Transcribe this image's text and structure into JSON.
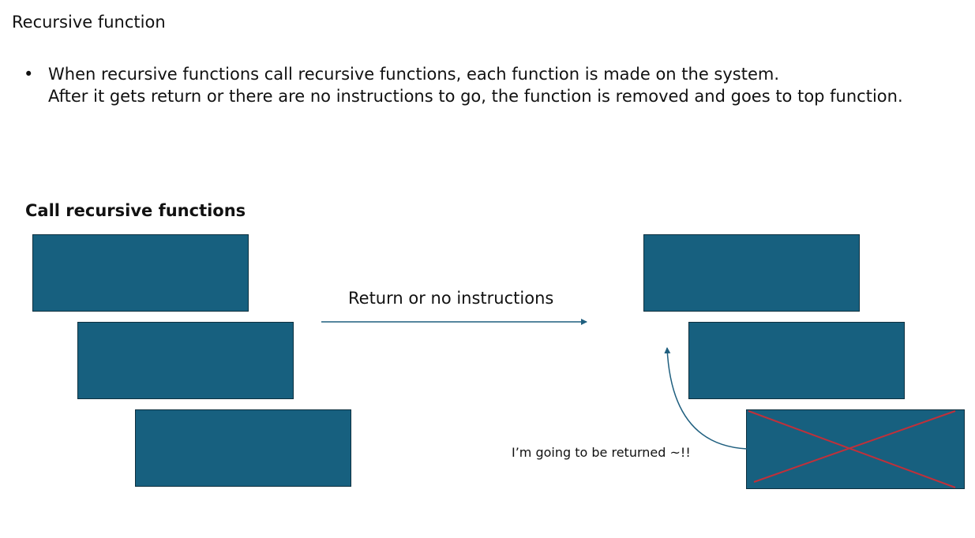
{
  "title": "Recursive function",
  "bullet": {
    "symbol": "•",
    "lines": [
      "When recursive functions call recursive functions, each function is made on the system.",
      "After it gets return or there are no instructions to go, the function is removed and goes to top function."
    ]
  },
  "section_heading": "Call recursive functions",
  "arrow_label": "Return or no instructions",
  "annotation": "I’m going to be returned ~!!",
  "colors": {
    "box_fill": "#17607f",
    "box_border": "#0d2f3e",
    "arrow": "#1f5f7f",
    "cross": "#c0303a"
  }
}
